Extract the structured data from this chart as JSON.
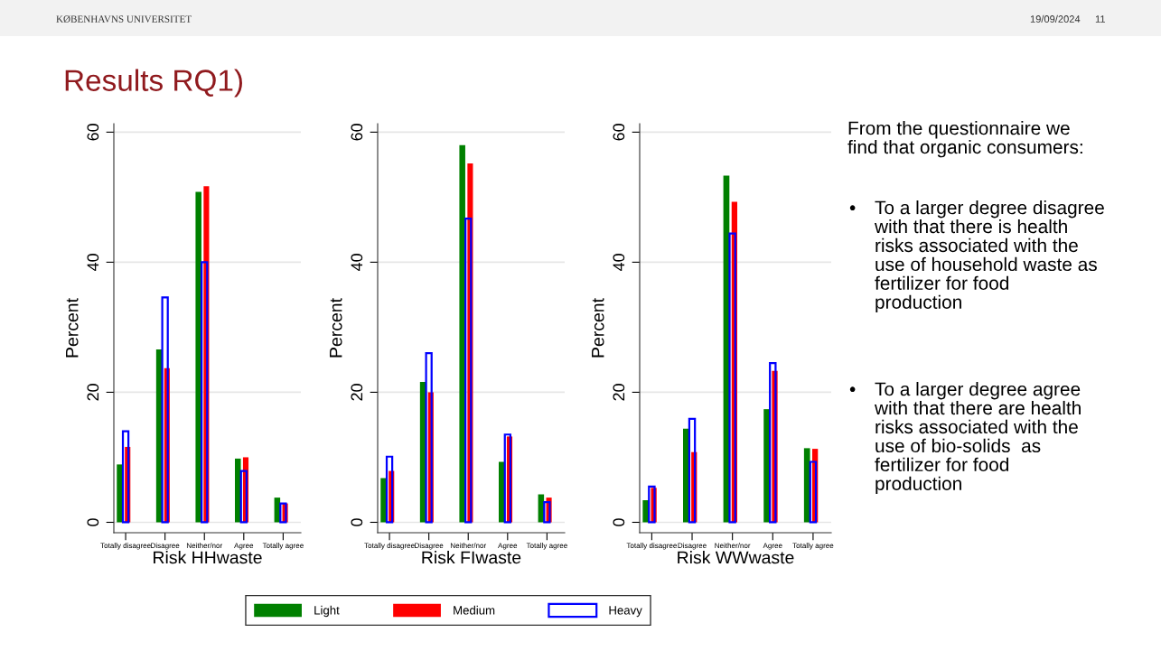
{
  "chart_data": [
    {
      "type": "bar",
      "xlabel": "Risk HHwaste",
      "ylabel": "Percent",
      "categories": [
        "Totally disagree",
        "Disagree",
        "Neither/nor",
        "Agree",
        "Totally agree"
      ],
      "ylim": [
        -1.6,
        61.3
      ],
      "yticks": [
        0,
        20,
        40,
        60
      ],
      "grid": "y",
      "legend": false,
      "series": [
        {
          "color": "#008000",
          "values": [
            8.9,
            26.6,
            50.8,
            9.8,
            3.8
          ]
        },
        {
          "color": "#ff0000",
          "values": [
            11.6,
            23.7,
            51.7,
            10.0,
            2.9
          ]
        },
        {
          "color": "#0000ff",
          "values": [
            14.0,
            34.6,
            40.0,
            7.9,
            2.9
          ]
        }
      ]
    },
    {
      "type": "bar",
      "xlabel": "Risk FIwaste",
      "ylabel": "Percent",
      "categories": [
        "Totally disagree",
        "Disagree",
        "Neither/nor",
        "Agree",
        "Totally agree"
      ],
      "ylim": [
        -1.6,
        61.3
      ],
      "yticks": [
        0,
        20,
        40,
        60
      ],
      "grid": "y",
      "legend": "bottom",
      "series": [
        {
          "name": "Light",
          "color": "#008000",
          "values": [
            6.8,
            21.6,
            58.0,
            9.3,
            4.3
          ]
        },
        {
          "name": "Medium",
          "color": "#ff0000",
          "values": [
            7.9,
            20.0,
            55.2,
            13.2,
            3.8
          ]
        },
        {
          "name": "Heavy",
          "color": "#0000ff",
          "values": [
            10.1,
            26.0,
            46.7,
            13.5,
            3.1
          ]
        }
      ]
    },
    {
      "type": "bar",
      "xlabel": "Risk WWwaste",
      "ylabel": "Percent",
      "categories": [
        "Totally disagree",
        "Disagree",
        "Neither/nor",
        "Agree",
        "Totally agree"
      ],
      "ylim": [
        -1.6,
        61.3
      ],
      "yticks": [
        0,
        20,
        40,
        60
      ],
      "grid": "y",
      "legend": false,
      "series": [
        {
          "color": "#008000",
          "values": [
            3.4,
            14.4,
            53.3,
            17.4,
            11.4
          ]
        },
        {
          "color": "#ff0000",
          "values": [
            5.3,
            10.8,
            49.3,
            23.3,
            11.3
          ]
        },
        {
          "color": "#0000ff",
          "values": [
            5.5,
            15.9,
            44.4,
            24.5,
            9.3
          ]
        }
      ]
    },
    {
      "type": "other",
      "title": "Results RQ1)",
      "annotations": [
        "KØBENHAVNS UNIVERSITET",
        "19/09/2024",
        "11",
        "From the questionnaire we\nfind that organic consumers:",
        "•",
        "To a larger degree disagree\nwith that there is health\nrisks associated with the\nuse of household waste as\nfertilizer for food\nproduction",
        "•",
        "To a larger degree agree\nwith that there are health\nrisks associated with the\nuse of bio-solids  as\nfertilizer for food\nproduction"
      ]
    }
  ]
}
